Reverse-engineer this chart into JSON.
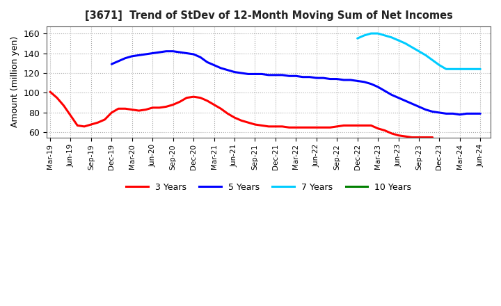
{
  "title": "[3671]  Trend of StDev of 12-Month Moving Sum of Net Incomes",
  "ylabel": "Amount (million yen)",
  "ylim": [
    55,
    167
  ],
  "yticks": [
    60,
    80,
    100,
    120,
    140,
    160
  ],
  "background_color": "#ffffff",
  "grid_color": "#aaaaaa",
  "series": {
    "3 Years": {
      "color": "#ff0000",
      "x": [
        0,
        1,
        2,
        3,
        4,
        5,
        6,
        7,
        8,
        9,
        10,
        11,
        12,
        13,
        14,
        15,
        16,
        17,
        18,
        19,
        20,
        21,
        22,
        23,
        24,
        25,
        26,
        27,
        28,
        29,
        30,
        31,
        32,
        33,
        34,
        35,
        36,
        37,
        38,
        39,
        40,
        41,
        42,
        43,
        44,
        45,
        46,
        47,
        48,
        49,
        50,
        51,
        52,
        53,
        54,
        55,
        56
      ],
      "y": [
        101,
        95,
        87,
        77,
        67,
        66,
        68,
        70,
        73,
        80,
        84,
        84,
        83,
        82,
        83,
        85,
        85,
        86,
        88,
        91,
        95,
        96,
        95,
        92,
        88,
        84,
        79,
        75,
        72,
        70,
        68,
        67,
        66,
        66,
        66,
        65,
        65,
        65,
        65,
        65,
        65,
        65,
        66,
        67,
        67,
        67,
        67,
        67,
        64,
        62,
        59,
        57,
        56,
        55,
        55,
        55,
        55
      ]
    },
    "5 Years": {
      "color": "#0000ff",
      "x": [
        9,
        10,
        11,
        12,
        13,
        14,
        15,
        16,
        17,
        18,
        19,
        20,
        21,
        22,
        23,
        24,
        25,
        26,
        27,
        28,
        29,
        30,
        31,
        32,
        33,
        34,
        35,
        36,
        37,
        38,
        39,
        40,
        41,
        42,
        43,
        44,
        45,
        46,
        47,
        48,
        49,
        50,
        51,
        52,
        53,
        54,
        55,
        56,
        57,
        58,
        59,
        60,
        61,
        62,
        63
      ],
      "y": [
        129,
        132,
        135,
        137,
        138,
        139,
        140,
        141,
        142,
        142,
        141,
        140,
        139,
        136,
        131,
        128,
        125,
        123,
        121,
        120,
        119,
        119,
        119,
        118,
        118,
        118,
        117,
        117,
        116,
        116,
        115,
        115,
        114,
        114,
        113,
        113,
        112,
        111,
        109,
        106,
        102,
        98,
        95,
        92,
        89,
        86,
        83,
        81,
        80,
        79,
        79,
        78,
        79,
        79,
        79
      ]
    },
    "7 Years": {
      "color": "#00ccff",
      "x": [
        45,
        46,
        47,
        48,
        49,
        50,
        51,
        52,
        53,
        54,
        55,
        56,
        57,
        58,
        59,
        60,
        61,
        62,
        63
      ],
      "y": [
        155,
        158,
        160,
        160,
        158,
        156,
        153,
        150,
        146,
        142,
        138,
        133,
        128,
        124,
        124,
        124,
        124,
        124,
        124
      ]
    },
    "10 Years": {
      "color": "#008000",
      "x": [],
      "y": []
    }
  },
  "xtick_labels": [
    "Mar-19",
    "Jun-19",
    "Sep-19",
    "Dec-19",
    "Mar-20",
    "Jun-20",
    "Sep-20",
    "Dec-20",
    "Mar-21",
    "Jun-21",
    "Sep-21",
    "Dec-21",
    "Mar-22",
    "Jun-22",
    "Sep-22",
    "Dec-22",
    "Mar-23",
    "Jun-23",
    "Sep-23",
    "Dec-23",
    "Mar-24",
    "Jun-24"
  ],
  "xtick_positions": [
    0,
    3,
    6,
    9,
    12,
    15,
    18,
    21,
    24,
    27,
    30,
    33,
    36,
    39,
    42,
    45,
    48,
    51,
    54,
    57,
    60,
    63
  ],
  "legend_labels": [
    "3 Years",
    "5 Years",
    "7 Years",
    "10 Years"
  ],
  "legend_colors": [
    "#ff0000",
    "#0000ff",
    "#00ccff",
    "#008000"
  ]
}
